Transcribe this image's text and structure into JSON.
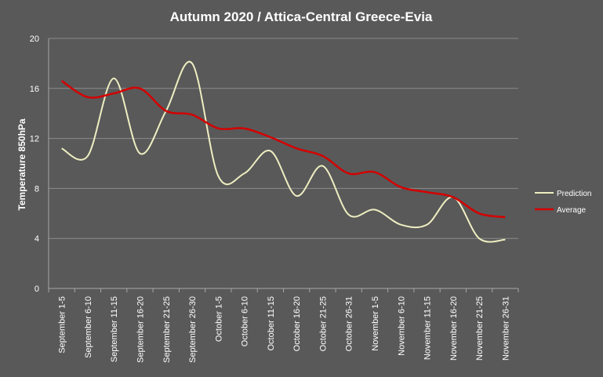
{
  "chart_data": {
    "type": "line",
    "title": "Autumn 2020 / Attica-Central Greece-Evia",
    "xlabel": "",
    "ylabel": "Temperature 850hPa",
    "ylim": [
      0,
      20
    ],
    "yticks": [
      0,
      4,
      8,
      12,
      16,
      20
    ],
    "grid": true,
    "legend_position": "right",
    "categories": [
      "September 1-5",
      "September 6-10",
      "September 11-15",
      "September 16-20",
      "September 21-25",
      "September 26-30",
      "October 1-5",
      "October 6-10",
      "October 11-15",
      "October 16-20",
      "October 21-25",
      "October 26-31",
      "November 1-5",
      "November 6-10",
      "November 11-15",
      "November 16-20",
      "November 21-25",
      "November 26-31"
    ],
    "series": [
      {
        "name": "Prediction",
        "color": "#eeeec2",
        "values": [
          11.2,
          10.6,
          16.8,
          10.8,
          14.2,
          18.0,
          9.0,
          9.2,
          11.0,
          7.4,
          9.8,
          5.9,
          6.3,
          5.1,
          5.1,
          7.3,
          4.0,
          3.9
        ]
      },
      {
        "name": "Average",
        "color": "#d40000",
        "values": [
          16.6,
          15.3,
          15.6,
          16.0,
          14.2,
          13.9,
          12.8,
          12.8,
          12.1,
          11.2,
          10.6,
          9.2,
          9.3,
          8.1,
          7.7,
          7.3,
          6.0,
          5.7
        ]
      }
    ]
  }
}
